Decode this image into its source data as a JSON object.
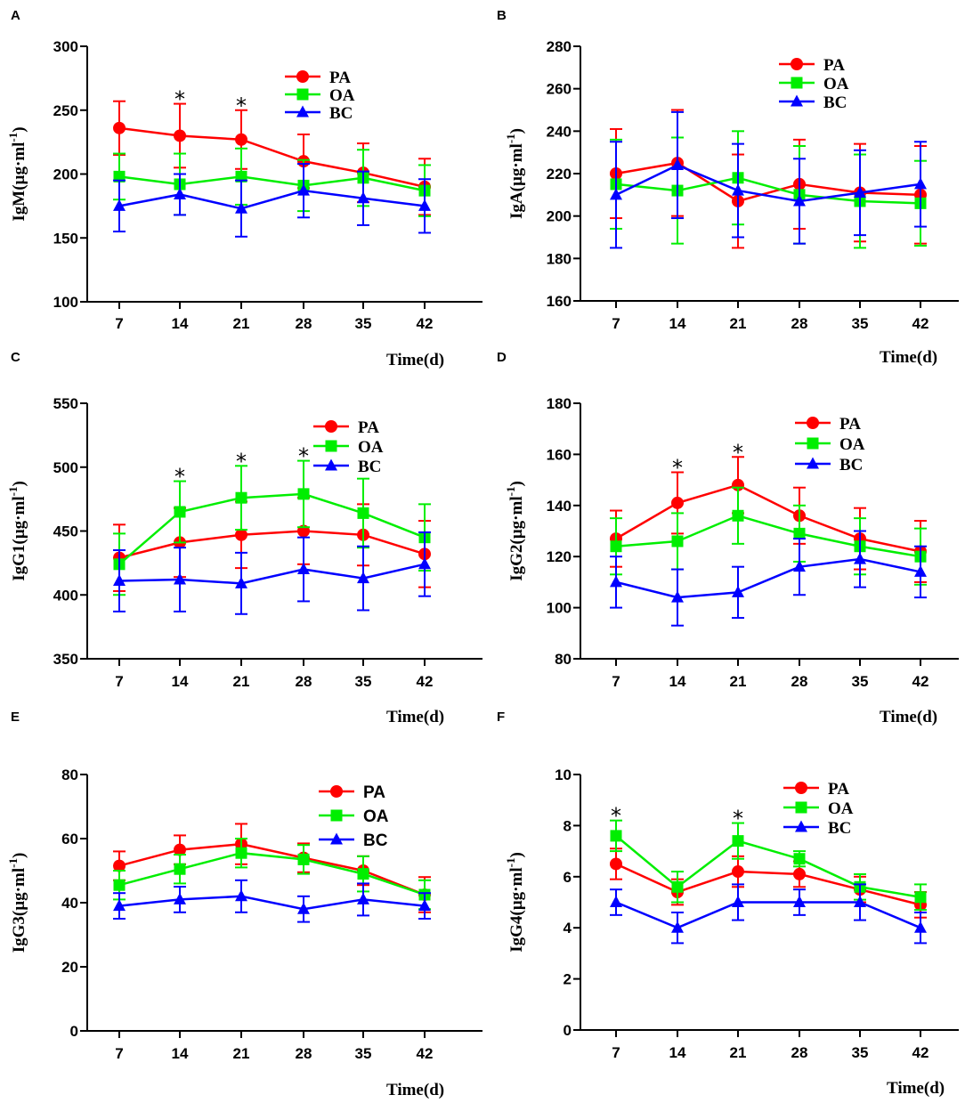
{
  "colors": {
    "PA": "#ff0000",
    "OA": "#00ee00",
    "BC": "#0000ff",
    "axis": "#000000"
  },
  "chart_data": [
    {
      "panel": "A",
      "type": "line",
      "categories": [
        "7",
        "14",
        "21",
        "28",
        "35",
        "42"
      ],
      "ylabel": "IgM(µg·ml",
      "ylabel_sup": "-1",
      "ylabel_close": ")",
      "xlabel": "Time(d)",
      "ylim": [
        100,
        300
      ],
      "yticks": [
        100,
        150,
        200,
        250,
        300
      ],
      "legend": [
        "PA",
        "OA",
        "BC"
      ],
      "legend_position": "top-right",
      "significance": [
        {
          "category": "14",
          "label": "*"
        },
        {
          "category": "21",
          "label": "*"
        }
      ],
      "series": [
        {
          "name": "PA",
          "marker": "circle",
          "values": [
            236,
            230,
            227,
            210,
            201,
            190
          ],
          "errors": [
            21,
            25,
            23,
            21,
            23,
            22
          ]
        },
        {
          "name": "OA",
          "marker": "square",
          "values": [
            198,
            192,
            198,
            191,
            197,
            187
          ],
          "errors": [
            18,
            24,
            22,
            20,
            22,
            20
          ]
        },
        {
          "name": "BC",
          "marker": "triangle",
          "values": [
            175,
            184,
            173,
            187,
            181,
            175
          ],
          "errors": [
            20,
            16,
            22,
            21,
            21,
            21
          ]
        }
      ]
    },
    {
      "panel": "B",
      "type": "line",
      "categories": [
        "7",
        "14",
        "21",
        "28",
        "35",
        "42"
      ],
      "ylabel": "IgA(µg·ml",
      "ylabel_sup": "-1",
      "ylabel_close": ")",
      "xlabel": "Time(d)",
      "ylim": [
        160,
        280
      ],
      "yticks": [
        160,
        180,
        200,
        220,
        240,
        260,
        280
      ],
      "legend": [
        "PA",
        "OA",
        "BC"
      ],
      "legend_position": "top-right",
      "significance": [],
      "series": [
        {
          "name": "PA",
          "marker": "circle",
          "values": [
            220,
            225,
            207,
            215,
            211,
            210
          ],
          "errors": [
            21,
            25,
            22,
            21,
            23,
            23
          ]
        },
        {
          "name": "OA",
          "marker": "square",
          "values": [
            215,
            212,
            218,
            210,
            207,
            206
          ],
          "errors": [
            21,
            25,
            22,
            23,
            22,
            20
          ]
        },
        {
          "name": "BC",
          "marker": "triangle",
          "values": [
            210,
            224,
            212,
            207,
            211,
            215
          ],
          "errors": [
            25,
            25,
            22,
            20,
            20,
            20
          ]
        }
      ]
    },
    {
      "panel": "C",
      "type": "line",
      "categories": [
        "7",
        "14",
        "21",
        "28",
        "35",
        "42"
      ],
      "ylabel": "IgG1(µg·ml",
      "ylabel_sup": "-1",
      "ylabel_close": ")",
      "xlabel": "Time(d)",
      "ylim": [
        350,
        550
      ],
      "yticks": [
        350,
        400,
        450,
        500,
        550
      ],
      "legend": [
        "PA",
        "OA",
        "BC"
      ],
      "legend_position": "top-right",
      "significance": [
        {
          "category": "14",
          "label": "*"
        },
        {
          "category": "21",
          "label": "*"
        },
        {
          "category": "28",
          "label": "*"
        }
      ],
      "series": [
        {
          "name": "PA",
          "marker": "circle",
          "values": [
            429,
            441,
            447,
            450,
            447,
            432
          ],
          "errors": [
            26,
            27,
            26,
            26,
            24,
            26
          ]
        },
        {
          "name": "OA",
          "marker": "square",
          "values": [
            424,
            465,
            476,
            479,
            464,
            445
          ],
          "errors": [
            24,
            24,
            25,
            26,
            27,
            26
          ]
        },
        {
          "name": "BC",
          "marker": "triangle",
          "values": [
            411,
            412,
            409,
            420,
            413,
            424
          ],
          "errors": [
            24,
            25,
            24,
            25,
            25,
            25
          ]
        }
      ]
    },
    {
      "panel": "D",
      "type": "line",
      "categories": [
        "7",
        "14",
        "21",
        "28",
        "35",
        "42"
      ],
      "ylabel": "IgG2(µg·ml",
      "ylabel_sup": "-1",
      "ylabel_close": ")",
      "xlabel": "Time(d)",
      "ylim": [
        80,
        180
      ],
      "yticks": [
        80,
        100,
        120,
        140,
        160,
        180
      ],
      "legend": [
        "PA",
        "OA",
        "BC"
      ],
      "legend_position": "top-right",
      "significance": [
        {
          "category": "14",
          "label": "*"
        },
        {
          "category": "21",
          "label": "*"
        }
      ],
      "series": [
        {
          "name": "PA",
          "marker": "circle",
          "values": [
            127,
            141,
            148,
            136,
            127,
            122
          ],
          "errors": [
            11,
            12,
            11,
            11,
            12,
            12
          ]
        },
        {
          "name": "OA",
          "marker": "square",
          "values": [
            124,
            126,
            136,
            129,
            124,
            120
          ],
          "errors": [
            11,
            11,
            11,
            11,
            11,
            11
          ]
        },
        {
          "name": "BC",
          "marker": "triangle",
          "values": [
            110,
            104,
            106,
            116,
            119,
            114
          ],
          "errors": [
            10,
            11,
            10,
            11,
            11,
            10
          ]
        }
      ]
    },
    {
      "panel": "E",
      "type": "line",
      "categories": [
        "7",
        "14",
        "21",
        "28",
        "35",
        "42"
      ],
      "ylabel": "IgG3(µg·ml",
      "ylabel_sup": "-1",
      "ylabel_close": ")",
      "xlabel": "Time(d)",
      "ylim": [
        0,
        80
      ],
      "yticks": [
        0,
        20,
        40,
        60,
        80
      ],
      "legend": [
        "PA",
        "OA",
        "BC"
      ],
      "legend_position": "top-right",
      "significance": [],
      "series": [
        {
          "name": "PA",
          "marker": "circle",
          "values": [
            51.5,
            56.5,
            58.3,
            54,
            50,
            42.5
          ],
          "errors": [
            4.5,
            4.5,
            6.3,
            4.5,
            4.5,
            5.5
          ]
        },
        {
          "name": "OA",
          "marker": "square",
          "values": [
            45.5,
            50.5,
            55.5,
            53.5,
            49,
            42.5
          ],
          "errors": [
            4.5,
            4.5,
            4.5,
            4.5,
            5.5,
            4.5
          ]
        },
        {
          "name": "BC",
          "marker": "triangle",
          "values": [
            39,
            41,
            42,
            38,
            41,
            39
          ],
          "errors": [
            4,
            4,
            5,
            4,
            5,
            4
          ]
        }
      ]
    },
    {
      "panel": "F",
      "type": "line",
      "categories": [
        "7",
        "14",
        "21",
        "28",
        "35",
        "42"
      ],
      "ylabel": "IgG4(µg·ml",
      "ylabel_sup": "-1",
      "ylabel_close": ")",
      "xlabel": "Time(d)",
      "ylim": [
        0,
        10
      ],
      "yticks": [
        0,
        2,
        4,
        6,
        8,
        10
      ],
      "legend": [
        "PA",
        "OA",
        "BC"
      ],
      "legend_position": "top-right",
      "significance": [
        {
          "category": "7",
          "label": "*"
        },
        {
          "category": "21",
          "label": "*"
        }
      ],
      "series": [
        {
          "name": "PA",
          "marker": "circle",
          "values": [
            6.5,
            5.4,
            6.2,
            6.1,
            5.5,
            4.9
          ],
          "errors": [
            0.6,
            0.5,
            0.6,
            0.5,
            0.5,
            0.5
          ]
        },
        {
          "name": "OA",
          "marker": "square",
          "values": [
            7.6,
            5.6,
            7.4,
            6.7,
            5.6,
            5.2
          ],
          "errors": [
            0.6,
            0.6,
            0.7,
            0.3,
            0.5,
            0.5
          ]
        },
        {
          "name": "BC",
          "marker": "triangle",
          "values": [
            5,
            4,
            5,
            5,
            5,
            4
          ],
          "errors": [
            0.5,
            0.6,
            0.7,
            0.5,
            0.7,
            0.6
          ]
        }
      ]
    }
  ]
}
